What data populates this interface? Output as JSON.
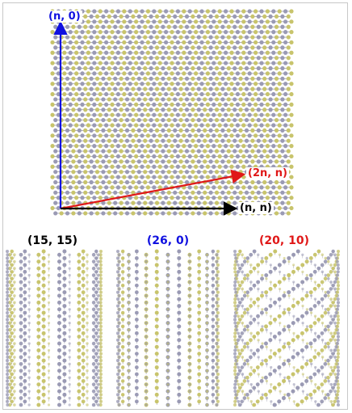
{
  "sheet": {
    "vectors": [
      {
        "id": "vec-n0",
        "label": "(n, 0)",
        "color": "#1010e0"
      },
      {
        "id": "vec-2nn",
        "label": "(2n, n)",
        "color": "#e01818"
      },
      {
        "id": "vec-nn",
        "label": "(n, n)",
        "color": "#000000"
      }
    ]
  },
  "tubes": [
    {
      "label": "(15, 15)",
      "color": "#000000",
      "style": "armchair"
    },
    {
      "label": "(26, 0)",
      "color": "#1010e0",
      "style": "zigzag"
    },
    {
      "label": "(20, 10)",
      "color": "#e01818",
      "style": "chiral"
    }
  ],
  "colors": {
    "atom_a": "#9a9ab4",
    "atom_b": "#c8c46c",
    "bond": "#8a8a9a",
    "frame": "#c8c8c8"
  }
}
